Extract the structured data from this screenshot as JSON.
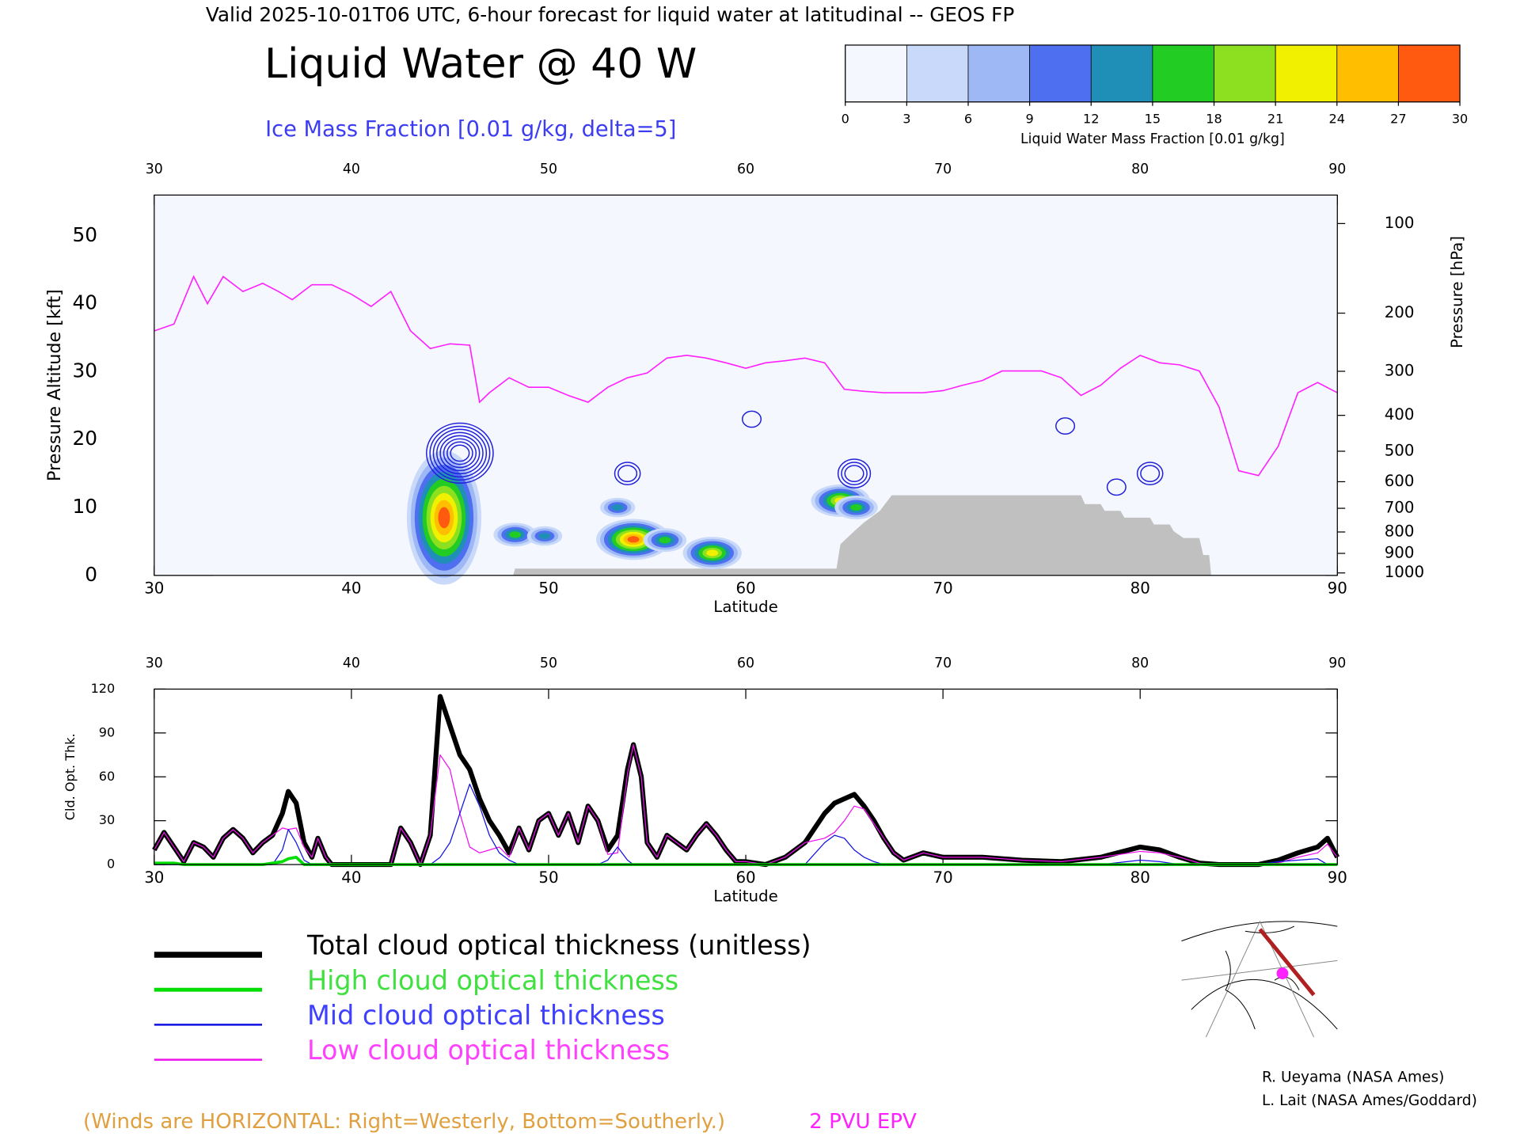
{
  "header": {
    "valid": "Valid 2025-10-01T06 UTC, 6-hour forecast for liquid water at latitudinal -- GEOS FP",
    "credits": [
      "R. Ueyama (NASA Ames)",
      "L. Lait (NASA Ames/Goddard)"
    ]
  },
  "chart_data": [
    {
      "type": "cross-section",
      "title": "Liquid Water @ 40 W",
      "subtitle": "Ice Mass Fraction [0.01 g/kg, delta=5]",
      "annotation": "(Winds are HORIZONTAL: Right=Westerly, Bottom=Southerly.)",
      "xlabel": "Latitude",
      "ylabel": "Pressure Altitude [kft]",
      "y2label": "Pressure [hPa]",
      "xlim": [
        30,
        90
      ],
      "xticks": [
        30,
        40,
        50,
        60,
        70,
        80,
        90
      ],
      "ylim": [
        0,
        56
      ],
      "yticks": [
        0,
        10,
        20,
        30,
        40,
        50
      ],
      "y2scale": "pressure-altitude",
      "y2ticks": [
        100,
        200,
        300,
        400,
        500,
        600,
        700,
        800,
        900,
        1000
      ],
      "colorbar": {
        "label": "Liquid Water Mass Fraction [0.01 g/kg]",
        "ticks": [
          0,
          3,
          6,
          9,
          12,
          15,
          18,
          21,
          24,
          27,
          30
        ],
        "colors": [
          "#f4f7fe",
          "#c9d9fa",
          "#9db8f5",
          "#4d6ff0",
          "#1f8fb8",
          "#22cc22",
          "#8ce020",
          "#f0f000",
          "#ffbe00",
          "#ff5a10"
        ]
      },
      "liquid_water": {
        "x": [
          44.7,
          48.3,
          49.8,
          53.5,
          54.3,
          55.9,
          58.3,
          64.8,
          65.6
        ],
        "y": [
          8.5,
          6,
          5.8,
          10,
          5.3,
          5.2,
          3.3,
          11,
          10
        ],
        "values": [
          30,
          15,
          12,
          12,
          28,
          15,
          21,
          21,
          15
        ]
      },
      "ice_mass_fraction": {
        "color": "#2020d8",
        "x": [
          45.5,
          54,
          65.5,
          80.5,
          60.3,
          78.8,
          76.2
        ],
        "y": [
          18,
          15,
          15,
          15,
          23,
          13,
          22
        ],
        "values": [
          40,
          10,
          15,
          10,
          5,
          5,
          5
        ]
      },
      "terrain": {
        "color": "#c0c0c0",
        "x": [
          48.2,
          48.3,
          64.6,
          64.8,
          65.5,
          66,
          66.8,
          67.4,
          77,
          77.2,
          78,
          78.2,
          79,
          79.2,
          80.5,
          80.7,
          81.5,
          81.7,
          82.2,
          83,
          83.2,
          83.5,
          83.6
        ],
        "values": [
          0,
          1,
          1,
          4.6,
          6.5,
          7.8,
          9.5,
          11.8,
          11.8,
          10.5,
          10.5,
          9.5,
          9.5,
          8.5,
          8.5,
          7.5,
          7.5,
          6.5,
          5.5,
          5.5,
          3,
          3,
          0
        ]
      },
      "series": [
        {
          "name": "2 PVU EPV",
          "color": "#ff20ff",
          "x": [
            30,
            31,
            32,
            32.7,
            33.5,
            34.5,
            35.5,
            36.3,
            37,
            38,
            39,
            40,
            41,
            42,
            43,
            44,
            45,
            46,
            46.5,
            47,
            48,
            49,
            50,
            51,
            52,
            53,
            54,
            55,
            56,
            57,
            58,
            59,
            60,
            61,
            62,
            63,
            64,
            65,
            66,
            67,
            68,
            69,
            70,
            71,
            72,
            73,
            74,
            75,
            76,
            77,
            78,
            79,
            80,
            81,
            82,
            83,
            84,
            85,
            86,
            87,
            88,
            89,
            90
          ],
          "values": [
            36,
            37,
            44,
            40,
            44,
            41.8,
            43,
            41.8,
            40.6,
            42.8,
            42.8,
            41.4,
            39.6,
            41.8,
            36,
            33.4,
            34.1,
            33.9,
            25.5,
            26.9,
            29.1,
            27.7,
            27.7,
            26.5,
            25.5,
            27.7,
            29.1,
            29.8,
            32,
            32.4,
            32,
            31.3,
            30.5,
            31.3,
            31.6,
            32,
            31.3,
            27.4,
            27.1,
            26.9,
            26.9,
            26.9,
            27.2,
            28,
            28.7,
            30.1,
            30.1,
            30.1,
            29.1,
            26.5,
            28,
            30.5,
            32.4,
            31.3,
            31,
            30.1,
            24.8,
            15.4,
            14.7,
            19,
            26.9,
            28.4,
            26.9
          ]
        }
      ]
    },
    {
      "type": "line",
      "xlabel": "Latitude",
      "ylabel": "Cld. Opt. Thk.",
      "xlim": [
        30,
        90
      ],
      "xticks": [
        30,
        40,
        50,
        60,
        70,
        80,
        90
      ],
      "ylim": [
        0,
        120
      ],
      "yticks": [
        0,
        30,
        60,
        90,
        120
      ],
      "x": [
        30,
        30.5,
        31,
        31.5,
        32,
        32.5,
        33,
        33.5,
        34,
        34.5,
        35,
        35.5,
        36,
        36.5,
        36.8,
        37.2,
        37.6,
        38,
        38.3,
        38.7,
        39,
        40,
        41,
        42,
        42.5,
        43,
        43.5,
        44,
        44.5,
        45,
        45.5,
        46,
        46.5,
        47,
        47.5,
        48,
        48.5,
        49,
        49.5,
        50,
        50.5,
        51,
        51.5,
        52,
        52.5,
        53,
        53.5,
        54,
        54.3,
        54.7,
        55,
        55.5,
        56,
        56.5,
        57,
        57.5,
        58,
        58.5,
        59,
        59.5,
        60,
        61,
        62,
        63,
        64,
        64.5,
        65,
        65.5,
        66,
        66.5,
        67,
        67.5,
        68,
        69,
        70,
        72,
        74,
        76,
        78,
        80,
        81,
        82,
        83,
        84,
        86,
        87,
        88,
        89,
        89.5,
        90
      ],
      "series": [
        {
          "name": "Total cloud optical thickness (unitless)",
          "color": "#000000",
          "legend_color": "#000000",
          "line_width": 5,
          "values": [
            10,
            22,
            12,
            2,
            15,
            12,
            5,
            18,
            24,
            18,
            8,
            15,
            20,
            35,
            50,
            42,
            15,
            5,
            18,
            5,
            0,
            0,
            0,
            0,
            25,
            15,
            0,
            20,
            115,
            95,
            75,
            65,
            45,
            30,
            20,
            8,
            25,
            10,
            30,
            35,
            20,
            35,
            15,
            40,
            30,
            10,
            20,
            65,
            82,
            60,
            15,
            5,
            20,
            15,
            10,
            20,
            28,
            20,
            10,
            2,
            2,
            0,
            5,
            15,
            35,
            42,
            45,
            48,
            40,
            30,
            18,
            8,
            3,
            8,
            5,
            5,
            3,
            2,
            5,
            12,
            10,
            5,
            1,
            0,
            0,
            3,
            8,
            12,
            18,
            5
          ]
        },
        {
          "name": "High cloud optical thickness",
          "color": "#00dd00",
          "legend_color": "#40e040",
          "line_width": 3,
          "values": [
            1,
            1,
            1,
            0,
            0,
            0,
            0,
            0,
            0,
            0,
            0,
            0,
            1,
            2,
            4,
            5,
            0,
            0,
            0,
            0,
            0,
            0,
            0,
            0,
            0,
            0,
            0,
            0,
            0,
            0,
            0,
            0,
            0,
            0,
            0,
            0,
            0,
            0,
            0,
            0,
            0,
            0,
            0,
            0,
            0,
            0,
            0,
            0,
            0,
            0,
            0,
            0,
            0,
            0,
            0,
            0,
            0,
            0,
            0,
            0,
            0,
            0,
            0,
            0,
            0,
            0,
            0,
            0,
            0,
            0,
            0,
            0,
            0,
            0,
            0,
            0,
            0,
            0,
            0,
            0,
            0,
            0,
            0,
            0,
            0,
            0,
            0,
            0,
            0,
            0
          ]
        },
        {
          "name": "Mid cloud optical thickness",
          "color": "#1010e0",
          "legend_color": "#4040ff",
          "line_width": 1,
          "values": [
            0,
            0,
            0,
            0,
            0,
            0,
            0,
            0,
            0,
            0,
            0,
            0,
            0,
            10,
            24,
            15,
            3,
            0,
            0,
            0,
            0,
            0,
            0,
            0,
            0,
            0,
            0,
            0,
            5,
            15,
            35,
            55,
            40,
            20,
            8,
            3,
            0,
            0,
            0,
            0,
            0,
            0,
            0,
            0,
            0,
            3,
            12,
            3,
            0,
            0,
            0,
            0,
            0,
            0,
            0,
            0,
            0,
            0,
            0,
            0,
            0,
            0,
            0,
            0,
            15,
            20,
            18,
            10,
            5,
            2,
            0,
            0,
            0,
            0,
            0,
            0,
            0,
            0,
            0,
            3,
            2,
            0,
            0,
            0,
            0,
            2,
            3,
            4,
            0,
            0
          ]
        },
        {
          "name": "Low cloud optical thickness",
          "color": "#ee10ee",
          "legend_color": "#ff40ff",
          "line_width": 1,
          "values": [
            10,
            22,
            12,
            2,
            15,
            12,
            5,
            18,
            24,
            18,
            8,
            15,
            20,
            25,
            24,
            25,
            12,
            5,
            18,
            5,
            0,
            0,
            0,
            0,
            25,
            15,
            0,
            20,
            75,
            65,
            35,
            12,
            8,
            10,
            12,
            5,
            25,
            10,
            30,
            35,
            20,
            35,
            15,
            40,
            30,
            7,
            8,
            62,
            82,
            60,
            15,
            5,
            20,
            15,
            10,
            20,
            28,
            20,
            10,
            2,
            2,
            0,
            5,
            15,
            18,
            22,
            30,
            40,
            38,
            28,
            18,
            8,
            3,
            8,
            5,
            5,
            3,
            2,
            5,
            9,
            8,
            5,
            1,
            0,
            0,
            1,
            5,
            8,
            14,
            5
          ]
        }
      ]
    }
  ]
}
